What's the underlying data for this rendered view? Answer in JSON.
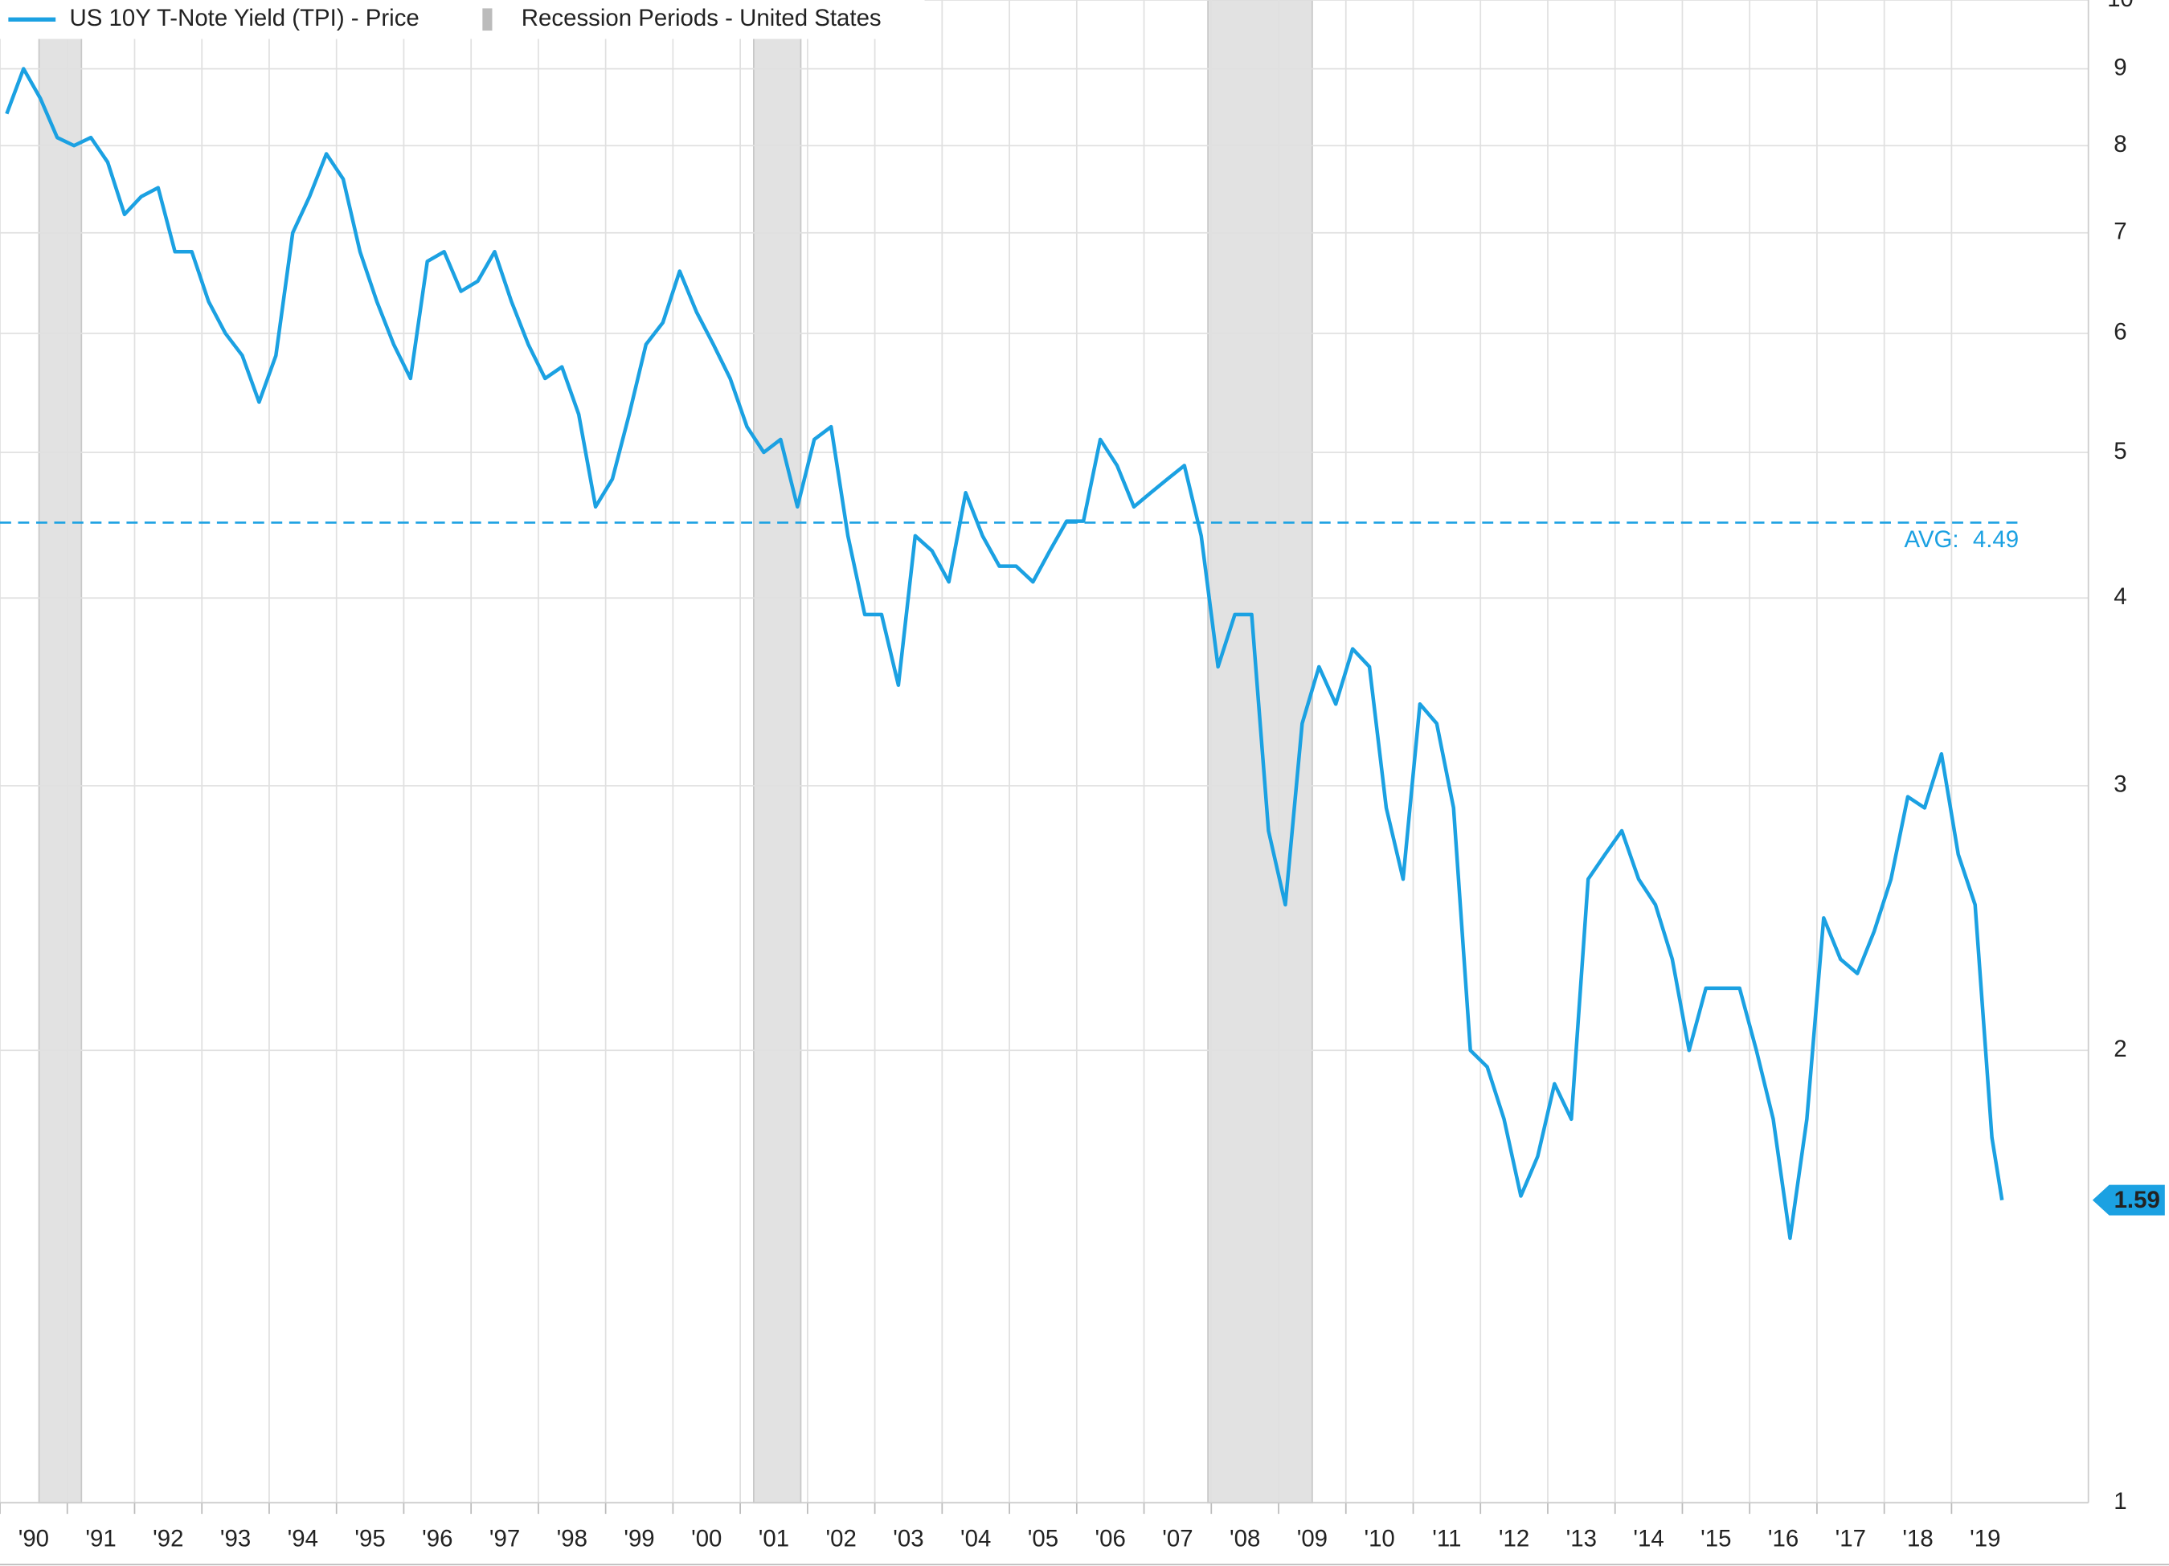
{
  "chart_data": {
    "type": "line",
    "log_scale": true,
    "grid": true,
    "legend": "top-left",
    "series": [
      {
        "name": "US 10Y T-Note Yield (TPI) - Price",
        "color": "#1ba1e2",
        "x": [
          1990.1,
          1990.35,
          1990.6,
          1990.85,
          1991.1,
          1991.35,
          1991.6,
          1991.85,
          1992.1,
          1992.35,
          1992.6,
          1992.85,
          1993.1,
          1993.35,
          1993.6,
          1993.85,
          1994.1,
          1994.35,
          1994.6,
          1994.85,
          1995.1,
          1995.35,
          1995.6,
          1995.85,
          1996.1,
          1996.35,
          1996.6,
          1996.85,
          1997.1,
          1997.35,
          1997.6,
          1997.85,
          1998.1,
          1998.35,
          1998.6,
          1998.85,
          1999.1,
          1999.35,
          1999.6,
          1999.85,
          2000.1,
          2000.35,
          2000.6,
          2000.85,
          2001.1,
          2001.35,
          2001.6,
          2001.85,
          2002.1,
          2002.35,
          2002.6,
          2002.85,
          2003.1,
          2003.35,
          2003.6,
          2003.85,
          2004.1,
          2004.35,
          2004.6,
          2004.85,
          2005.1,
          2005.35,
          2005.6,
          2005.85,
          2006.1,
          2006.35,
          2006.6,
          2006.85,
          2007.1,
          2007.35,
          2007.6,
          2007.85,
          2008.1,
          2008.35,
          2008.6,
          2008.85,
          2009.1,
          2009.35,
          2009.6,
          2009.85,
          2010.1,
          2010.35,
          2010.6,
          2010.85,
          2011.1,
          2011.35,
          2011.6,
          2011.85,
          2012.1,
          2012.35,
          2012.6,
          2012.85,
          2013.1,
          2013.35,
          2013.6,
          2013.85,
          2014.1,
          2014.35,
          2014.6,
          2014.85,
          2015.1,
          2015.35,
          2015.6,
          2015.85,
          2016.1,
          2016.35,
          2016.6,
          2016.85,
          2017.1,
          2017.35,
          2017.6,
          2017.85,
          2018.1,
          2018.35,
          2018.6,
          2018.85,
          2019.1,
          2019.35,
          2019.6,
          2019.75
        ],
        "values": [
          8.4,
          9.0,
          8.6,
          8.1,
          8.0,
          8.1,
          7.8,
          7.2,
          7.4,
          7.5,
          6.8,
          6.8,
          6.3,
          6.0,
          5.8,
          5.4,
          5.8,
          7.0,
          7.4,
          7.9,
          7.6,
          6.8,
          6.3,
          5.9,
          5.6,
          6.7,
          6.8,
          6.4,
          6.5,
          6.8,
          6.3,
          5.9,
          5.6,
          5.7,
          5.3,
          4.6,
          4.8,
          5.3,
          5.9,
          6.1,
          6.6,
          6.2,
          5.9,
          5.6,
          5.2,
          5.0,
          5.1,
          4.6,
          5.1,
          5.2,
          4.4,
          3.9,
          3.9,
          3.5,
          4.4,
          4.3,
          4.1,
          4.7,
          4.4,
          4.2,
          4.2,
          4.1,
          4.3,
          4.5,
          4.5,
          5.1,
          4.9,
          4.6,
          4.7,
          4.8,
          4.9,
          4.4,
          3.6,
          3.9,
          3.9,
          2.8,
          2.5,
          3.3,
          3.6,
          3.4,
          3.7,
          3.6,
          2.9,
          2.6,
          3.4,
          3.3,
          2.9,
          2.0,
          1.95,
          1.8,
          1.6,
          1.7,
          1.9,
          1.8,
          2.6,
          2.7,
          2.8,
          2.6,
          2.5,
          2.3,
          2.0,
          2.2,
          2.2,
          2.2,
          2.0,
          1.8,
          1.5,
          1.8,
          2.45,
          2.3,
          2.25,
          2.4,
          2.6,
          2.95,
          2.9,
          3.15,
          2.7,
          2.5,
          1.75,
          1.59
        ]
      }
    ],
    "recession_name": "Recession Periods - United States",
    "recessions": [
      [
        1990.58,
        1991.21
      ],
      [
        2001.2,
        2001.9
      ],
      [
        2007.95,
        2009.5
      ]
    ],
    "average_label": "AVG:",
    "average": 4.49,
    "last_value": 1.59,
    "xlim": [
      1990,
      2021
    ],
    "ylim": [
      1,
      10
    ],
    "yticks": [
      1,
      2,
      3,
      4,
      5,
      6,
      7,
      8,
      9,
      10
    ],
    "xticks": [
      {
        "value": 1990,
        "label": "'90"
      },
      {
        "value": 1991,
        "label": "'91"
      },
      {
        "value": 1992,
        "label": "'92"
      },
      {
        "value": 1993,
        "label": "'93"
      },
      {
        "value": 1994,
        "label": "'94"
      },
      {
        "value": 1995,
        "label": "'95"
      },
      {
        "value": 1996,
        "label": "'96"
      },
      {
        "value": 1997,
        "label": "'97"
      },
      {
        "value": 1998,
        "label": "'98"
      },
      {
        "value": 1999,
        "label": "'99"
      },
      {
        "value": 2000,
        "label": "'00"
      },
      {
        "value": 2001,
        "label": "'01"
      },
      {
        "value": 2002,
        "label": "'02"
      },
      {
        "value": 2003,
        "label": "'03"
      },
      {
        "value": 2004,
        "label": "'04"
      },
      {
        "value": 2005,
        "label": "'05"
      },
      {
        "value": 2006,
        "label": "'06"
      },
      {
        "value": 2007,
        "label": "'07"
      },
      {
        "value": 2008,
        "label": "'08"
      },
      {
        "value": 2009,
        "label": "'09"
      },
      {
        "value": 2010,
        "label": "'10"
      },
      {
        "value": 2011,
        "label": "'11"
      },
      {
        "value": 2012,
        "label": "'12"
      },
      {
        "value": 2013,
        "label": "'13"
      },
      {
        "value": 2014,
        "label": "'14"
      },
      {
        "value": 2015,
        "label": "'15"
      },
      {
        "value": 2016,
        "label": "'16"
      },
      {
        "value": 2017,
        "label": "'17"
      },
      {
        "value": 2018,
        "label": "'18"
      },
      {
        "value": 2019,
        "label": "'19"
      }
    ]
  }
}
